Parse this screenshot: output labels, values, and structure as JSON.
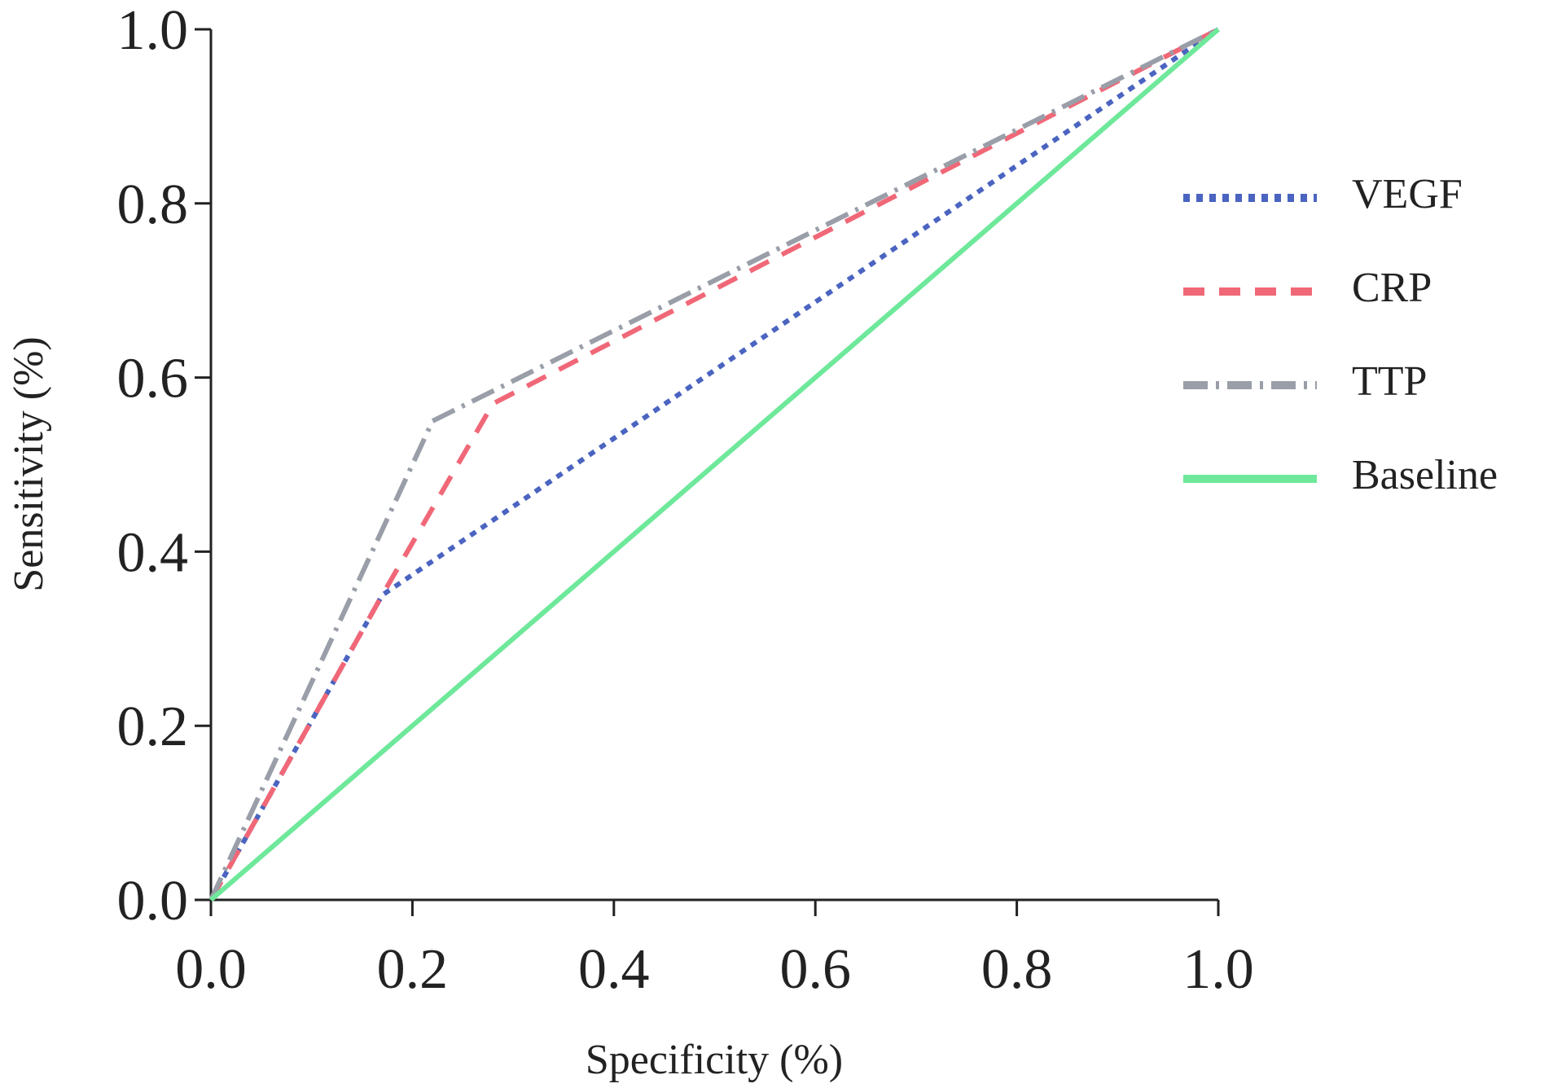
{
  "chart_data": {
    "type": "line",
    "xlabel": "Specificity (%)",
    "ylabel": "Sensitivity (%)",
    "xlim": [
      0,
      1
    ],
    "ylim": [
      0,
      1
    ],
    "xticks": [
      {
        "value": 0,
        "label": "0.0"
      },
      {
        "value": 0.2,
        "label": "0.2"
      },
      {
        "value": 0.4,
        "label": "0.4"
      },
      {
        "value": 0.6,
        "label": "0.6"
      },
      {
        "value": 0.8,
        "label": "0.8"
      },
      {
        "value": 1,
        "label": "1.0"
      }
    ],
    "yticks": [
      {
        "value": 0,
        "label": "0.0"
      },
      {
        "value": 0.2,
        "label": "0.2"
      },
      {
        "value": 0.4,
        "label": "0.4"
      },
      {
        "value": 0.6,
        "label": "0.6"
      },
      {
        "value": 0.8,
        "label": "0.8"
      },
      {
        "value": 1,
        "label": "1.0"
      }
    ],
    "legend": "right",
    "series": [
      {
        "name": "VEGF",
        "color": "#4a64c0",
        "dash": "dotted",
        "x": [
          0,
          0.17,
          1
        ],
        "values": [
          0,
          0.35,
          1
        ]
      },
      {
        "name": "CRP",
        "color": "#f06878",
        "dash": "dashed",
        "x": [
          0,
          0.17,
          0.28,
          1
        ],
        "values": [
          0,
          0.35,
          0.57,
          1
        ]
      },
      {
        "name": "TTP",
        "color": "#999ea8",
        "dash": "dashdot",
        "x": [
          0,
          0.22,
          1
        ],
        "values": [
          0,
          0.55,
          1
        ]
      },
      {
        "name": "Baseline",
        "color": "#6ee89a",
        "dash": "solid",
        "x": [
          0,
          1
        ],
        "values": [
          0,
          1
        ]
      }
    ]
  }
}
